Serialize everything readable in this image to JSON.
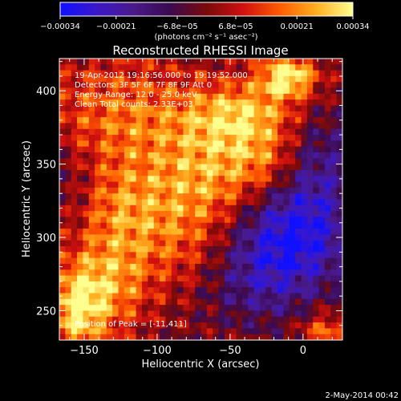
{
  "chart_data": {
    "type": "heatmap",
    "title": "Reconstructed RHESSI Image",
    "xlabel": "Heliocentric X (arcsec)",
    "ylabel": "Heliocentric Y (arcsec)",
    "xlim": [
      -167,
      27
    ],
    "ylim": [
      230,
      422
    ],
    "x_ticks": [
      -150,
      -100,
      -50,
      0
    ],
    "x_tick_labels": [
      "−150",
      "−100",
      "−50",
      "0"
    ],
    "y_ticks": [
      250,
      300,
      350,
      400
    ],
    "y_tick_labels": [
      "250",
      "300",
      "350",
      "400"
    ],
    "colorbar": {
      "min": -0.00034,
      "max": 0.00034,
      "tick_values": [
        -0.00034,
        -0.00021,
        -6.8e-05,
        6.8e-05,
        0.00021,
        0.00034
      ],
      "tick_labels": [
        "−0.00034",
        "−0.00021",
        "−6.8e−05",
        "6.8e−05",
        "0.00021",
        "0.00034"
      ],
      "units_label": "(photons cm⁻² s⁻¹ asec⁻²)",
      "colormap": [
        "#1010ff",
        "#3a18c8",
        "#4a1a8a",
        "#3a0a50",
        "#7a0a0a",
        "#d01010",
        "#ff5a00",
        "#ffb020",
        "#ffff90"
      ]
    },
    "info_lines": [
      "19-Apr-2012 19:16:56.000 to 19:19:52.000",
      "Detectors: 3F 5F 6F 7F 8F 9F  Att 0",
      "Energy Range: 12.0 - 25.0 keV",
      "Clean     Total counts: 2.33E+03"
    ],
    "peak_label": "Position of Peak = [-11,411]",
    "peak_position": [
      -11,
      411
    ],
    "footer_date": "2-May-2014 00:42",
    "grid": {
      "nx": 48,
      "ny": 48,
      "features": [
        {
          "x": -125,
          "y": 383,
          "amp": 0.00018,
          "sx": 38,
          "sy": 28
        },
        {
          "x": -65,
          "y": 340,
          "amp": 0.00022,
          "sx": 30,
          "sy": 26
        },
        {
          "x": -40,
          "y": 383,
          "amp": 0.00026,
          "sx": 28,
          "sy": 16
        },
        {
          "x": -10,
          "y": 410,
          "amp": 0.00034,
          "sx": 14,
          "sy": 10
        },
        {
          "x": -155,
          "y": 252,
          "amp": 0.0003,
          "sx": 14,
          "sy": 22
        },
        {
          "x": -130,
          "y": 270,
          "amp": 0.0002,
          "sx": 18,
          "sy": 24
        },
        {
          "x": -125,
          "y": 320,
          "amp": 0.00016,
          "sx": 22,
          "sy": 22
        },
        {
          "x": -85,
          "y": 295,
          "amp": 0.00012,
          "sx": 24,
          "sy": 24
        },
        {
          "x": -25,
          "y": 352,
          "amp": 0.00012,
          "sx": 18,
          "sy": 14
        },
        {
          "x": 15,
          "y": 235,
          "amp": 0.00018,
          "sx": 12,
          "sy": 10
        },
        {
          "x": -10,
          "y": 300,
          "amp": -0.0003,
          "sx": 30,
          "sy": 24
        },
        {
          "x": -30,
          "y": 265,
          "amp": -0.00012,
          "sx": 28,
          "sy": 20
        },
        {
          "x": 10,
          "y": 350,
          "amp": -0.00016,
          "sx": 20,
          "sy": 30
        },
        {
          "x": -160,
          "y": 340,
          "amp": -8e-05,
          "sx": 14,
          "sy": 20
        }
      ]
    }
  }
}
